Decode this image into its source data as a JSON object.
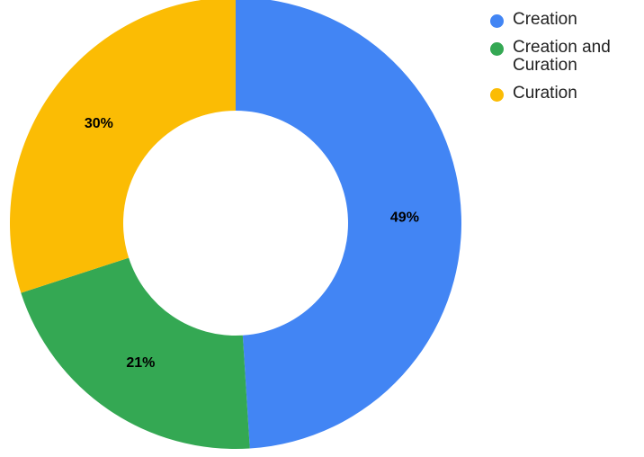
{
  "chart_data": {
    "type": "pie",
    "donut": true,
    "categories": [
      "Creation",
      "Creation and Curation",
      "Curation"
    ],
    "values": [
      49,
      21,
      30
    ],
    "labels": [
      "49%",
      "21%",
      "30%"
    ],
    "colors": [
      "#4285f4",
      "#34a853",
      "#fbbc04"
    ],
    "legend_position": "top-right",
    "title": ""
  },
  "legend": {
    "items": [
      {
        "label": "Creation",
        "color": "#4285f4"
      },
      {
        "label": "Creation and Curation",
        "color": "#34a853"
      },
      {
        "label": "Curation",
        "color": "#fbbc04"
      }
    ]
  }
}
